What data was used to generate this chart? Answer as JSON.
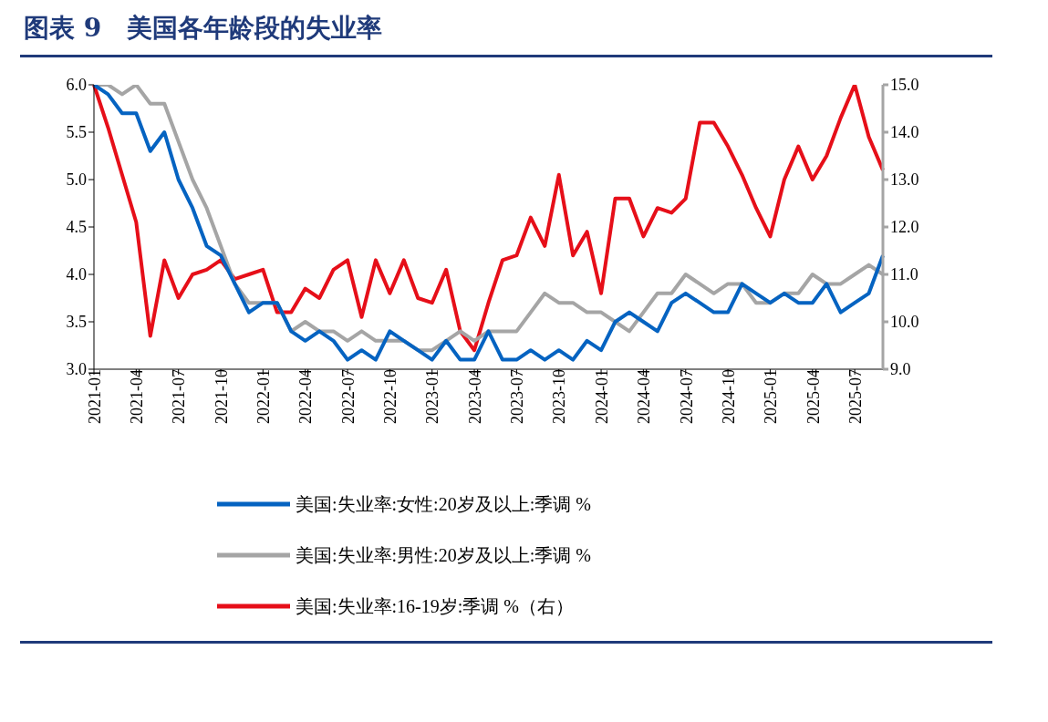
{
  "chart_data": {
    "type": "line",
    "title": "图表 9　美国各年龄段的失业率",
    "categories": [
      "2021-01",
      null,
      null,
      "2021-04",
      null,
      null,
      "2021-07",
      null,
      null,
      "2021-10",
      null,
      null,
      "2022-01",
      null,
      null,
      "2022-04",
      null,
      null,
      "2022-07",
      null,
      null,
      "2022-10",
      null,
      null,
      "2023-01",
      null,
      null,
      "2023-04",
      null,
      null,
      "2023-07",
      null,
      null,
      "2023-10",
      null,
      null,
      "2024-01",
      null,
      null,
      "2024-04",
      null,
      null,
      "2024-07",
      null,
      null,
      "2024-10",
      null,
      null,
      "2025-01",
      null,
      null,
      "2025-04",
      null,
      null,
      "2025-07",
      null,
      null
    ],
    "series": [
      {
        "name": "美国:失业率:女性:20岁及以上:季调 %",
        "color": "#0563c1",
        "values": [
          6.0,
          5.9,
          5.7,
          5.7,
          5.3,
          5.5,
          5.0,
          4.7,
          4.3,
          4.2,
          3.9,
          3.6,
          3.7,
          3.7,
          3.4,
          3.3,
          3.4,
          3.3,
          3.1,
          3.2,
          3.1,
          3.4,
          3.3,
          3.2,
          3.1,
          3.3,
          3.1,
          3.1,
          3.4,
          3.1,
          3.1,
          3.2,
          3.1,
          3.2,
          3.1,
          3.3,
          3.2,
          3.5,
          3.6,
          3.5,
          3.4,
          3.7,
          3.8,
          3.7,
          3.6,
          3.6,
          3.9,
          3.8,
          3.7,
          3.8,
          3.7,
          3.7,
          3.9,
          3.6,
          3.7,
          3.8,
          4.2
        ]
      },
      {
        "name": "美国:失业率:男性:20岁及以上:季调 %",
        "color": "#a5a5a5",
        "values": [
          6.0,
          6.0,
          5.9,
          6.0,
          5.8,
          5.8,
          5.4,
          5.0,
          4.7,
          4.3,
          3.9,
          3.7,
          3.7,
          3.7,
          3.4,
          3.5,
          3.4,
          3.4,
          3.3,
          3.4,
          3.3,
          3.3,
          3.3,
          3.2,
          3.2,
          3.3,
          3.4,
          3.3,
          3.4,
          3.4,
          3.4,
          3.6,
          3.8,
          3.7,
          3.7,
          3.6,
          3.6,
          3.5,
          3.4,
          3.6,
          3.8,
          3.8,
          4.0,
          3.9,
          3.8,
          3.9,
          3.9,
          3.7,
          3.7,
          3.8,
          3.8,
          4.0,
          3.9,
          3.9,
          4.0,
          4.1,
          4.0
        ]
      },
      {
        "name": "美国:失业率:16-19岁:季调 %（右）",
        "color": "#e60f19",
        "axis": "y2",
        "values": [
          15.0,
          14.1,
          13.1,
          12.1,
          9.7,
          11.3,
          10.5,
          11.0,
          11.1,
          11.3,
          10.9,
          11.0,
          11.1,
          10.2,
          10.2,
          10.7,
          10.5,
          11.1,
          11.3,
          10.1,
          11.3,
          10.6,
          11.3,
          10.5,
          10.4,
          11.1,
          9.8,
          9.4,
          10.4,
          11.3,
          11.4,
          12.2,
          11.6,
          13.1,
          11.4,
          11.9,
          10.6,
          12.6,
          12.6,
          11.8,
          12.4,
          12.3,
          12.6,
          14.2,
          14.2,
          13.7,
          13.1,
          12.4,
          11.8,
          13.0,
          13.7,
          13.0,
          13.5,
          14.3,
          15.0,
          13.9,
          13.2
        ]
      }
    ],
    "ylim": [
      3.0,
      6.0
    ],
    "yticks": [
      {
        "value": 3,
        "label": "3.0"
      },
      {
        "value": 3.5,
        "label": "3.5"
      },
      {
        "value": 4,
        "label": "4.0"
      },
      {
        "value": 4.5,
        "label": "4.5"
      },
      {
        "value": 5,
        "label": "5.0"
      },
      {
        "value": 5.5,
        "label": "5.5"
      },
      {
        "value": 6,
        "label": "6.0"
      }
    ],
    "y2lim": [
      9.0,
      15.0
    ],
    "y2ticks": [
      {
        "value": 9,
        "label": "9.0"
      },
      {
        "value": 10,
        "label": "10.0"
      },
      {
        "value": 11,
        "label": "11.0"
      },
      {
        "value": 12,
        "label": "12.0"
      },
      {
        "value": 13,
        "label": "13.0"
      },
      {
        "value": 14,
        "label": "14.0"
      },
      {
        "value": 15,
        "label": "15.0"
      }
    ],
    "grid": false,
    "legend": "bottom",
    "marker": "none",
    "line_style": "solid"
  }
}
